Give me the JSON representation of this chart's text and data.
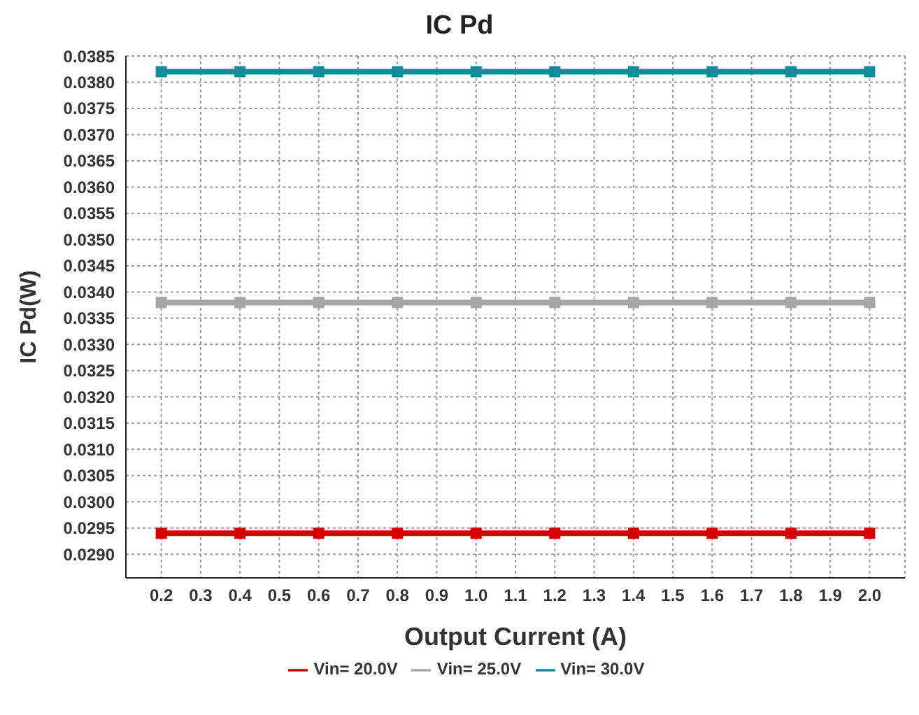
{
  "chart_data": {
    "type": "line",
    "title": "IC Pd",
    "xlabel": "Output Current (A)",
    "ylabel": "IC Pd(W)",
    "x": [
      0.2,
      0.4,
      0.6,
      0.8,
      1.0,
      1.2,
      1.4,
      1.6,
      1.8,
      2.0
    ],
    "series": [
      {
        "name": "Vin= 20.0V",
        "color": "#d40000",
        "values": [
          0.0294,
          0.0294,
          0.0294,
          0.0294,
          0.0294,
          0.0294,
          0.0294,
          0.0294,
          0.0294,
          0.0294
        ]
      },
      {
        "name": "Vin= 25.0V",
        "color": "#a6a6a6",
        "values": [
          0.0338,
          0.0338,
          0.0338,
          0.0338,
          0.0338,
          0.0338,
          0.0338,
          0.0338,
          0.0338,
          0.0338
        ]
      },
      {
        "name": "Vin= 30.0V",
        "color": "#178a9a",
        "values": [
          0.0382,
          0.0382,
          0.0382,
          0.0382,
          0.0382,
          0.0382,
          0.0382,
          0.0382,
          0.0382,
          0.0382
        ]
      }
    ],
    "xlim": [
      0.11,
      2.09
    ],
    "xticks": [
      {
        "value": 0.2,
        "label": "0.2"
      },
      {
        "value": 0.3,
        "label": "0.3"
      },
      {
        "value": 0.4,
        "label": "0.4"
      },
      {
        "value": 0.5,
        "label": "0.5"
      },
      {
        "value": 0.6,
        "label": "0.6"
      },
      {
        "value": 0.7,
        "label": "0.7"
      },
      {
        "value": 0.8,
        "label": "0.8"
      },
      {
        "value": 0.9,
        "label": "0.9"
      },
      {
        "value": 1.0,
        "label": "1.0"
      },
      {
        "value": 1.1,
        "label": "1.1"
      },
      {
        "value": 1.2,
        "label": "1.2"
      },
      {
        "value": 1.3,
        "label": "1.3"
      },
      {
        "value": 1.4,
        "label": "1.4"
      },
      {
        "value": 1.5,
        "label": "1.5"
      },
      {
        "value": 1.6,
        "label": "1.6"
      },
      {
        "value": 1.7,
        "label": "1.7"
      },
      {
        "value": 1.8,
        "label": "1.8"
      },
      {
        "value": 1.9,
        "label": "1.9"
      },
      {
        "value": 2.0,
        "label": "2.0"
      }
    ],
    "ylim": [
      0.02855,
      0.0385
    ],
    "yticks": [
      {
        "value": 0.029,
        "label": "0.0290"
      },
      {
        "value": 0.0295,
        "label": "0.0295"
      },
      {
        "value": 0.03,
        "label": "0.0300"
      },
      {
        "value": 0.0305,
        "label": "0.0305"
      },
      {
        "value": 0.031,
        "label": "0.0310"
      },
      {
        "value": 0.0315,
        "label": "0.0315"
      },
      {
        "value": 0.032,
        "label": "0.0320"
      },
      {
        "value": 0.0325,
        "label": "0.0325"
      },
      {
        "value": 0.033,
        "label": "0.0330"
      },
      {
        "value": 0.0335,
        "label": "0.0335"
      },
      {
        "value": 0.034,
        "label": "0.0340"
      },
      {
        "value": 0.0345,
        "label": "0.0345"
      },
      {
        "value": 0.035,
        "label": "0.0350"
      },
      {
        "value": 0.0355,
        "label": "0.0355"
      },
      {
        "value": 0.036,
        "label": "0.0360"
      },
      {
        "value": 0.0365,
        "label": "0.0365"
      },
      {
        "value": 0.037,
        "label": "0.0370"
      },
      {
        "value": 0.0375,
        "label": "0.0375"
      },
      {
        "value": 0.038,
        "label": "0.0380"
      },
      {
        "value": 0.0385,
        "label": "0.0385"
      }
    ],
    "grid": true,
    "legend": "bottom",
    "marker": "square",
    "line_style": "solid"
  }
}
